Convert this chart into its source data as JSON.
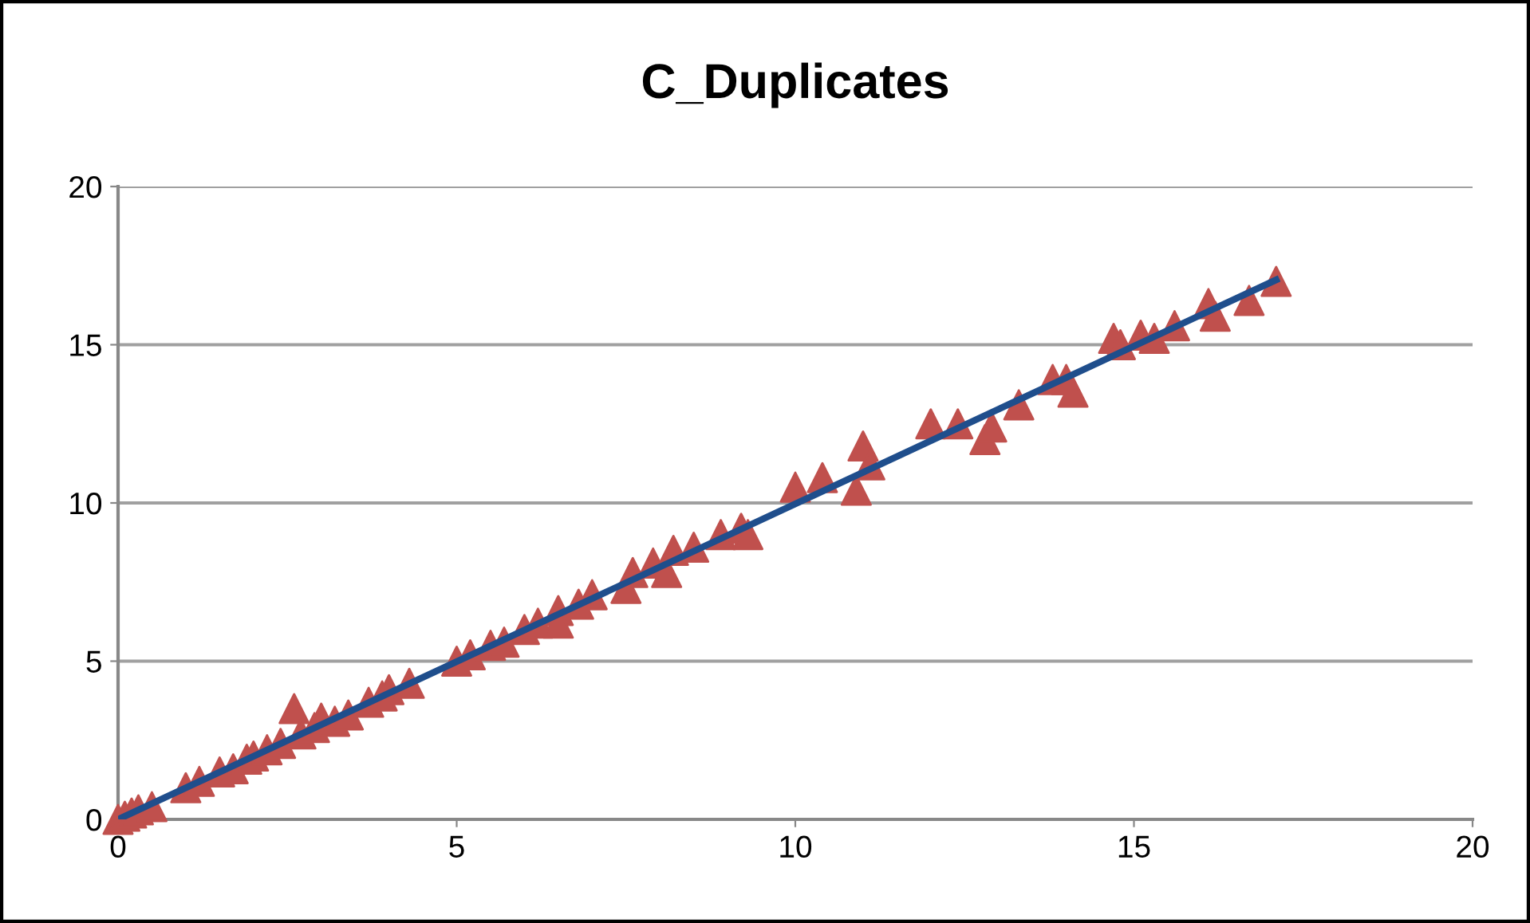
{
  "chart_data": {
    "type": "scatter",
    "title": "C_Duplicates",
    "xlim": [
      0,
      20
    ],
    "ylim": [
      0,
      20
    ],
    "xticks": [
      0,
      5,
      10,
      15,
      20
    ],
    "yticks": [
      0,
      5,
      10,
      15,
      20
    ],
    "grid": "y",
    "marker": "triangle",
    "series": [
      {
        "color": "#c0504d",
        "x": [
          0,
          0.1,
          0.2,
          0.3,
          0.5,
          1.0,
          1.2,
          1.5,
          1.7,
          1.9,
          2.0,
          2.2,
          2.4,
          2.6,
          2.7,
          2.9,
          3.0,
          3.2,
          3.4,
          3.7,
          3.9,
          4.0,
          4.3,
          5.0,
          5.2,
          5.5,
          5.7,
          6.0,
          6.2,
          6.5,
          6.5,
          6.8,
          7.0,
          7.5,
          7.6,
          7.9,
          8.1,
          8.2,
          8.5,
          8.9,
          9.2,
          9.3,
          10.0,
          10.4,
          10.9,
          11.0,
          11.1,
          12.0,
          12.4,
          12.8,
          12.9,
          13.3,
          13.8,
          14.1,
          14.0,
          14.7,
          14.8,
          15.1,
          15.3,
          15.6,
          16.1,
          16.2,
          16.7,
          17.1
        ],
        "values": [
          0,
          0.1,
          0.2,
          0.3,
          0.4,
          1.0,
          1.2,
          1.5,
          1.6,
          1.9,
          2.0,
          2.2,
          2.4,
          3.5,
          2.7,
          2.9,
          3.2,
          3.1,
          3.3,
          3.7,
          3.9,
          4.1,
          4.3,
          5.0,
          5.2,
          5.5,
          5.6,
          6.0,
          6.2,
          6.6,
          6.2,
          6.8,
          7.1,
          7.3,
          7.8,
          8.1,
          7.8,
          8.5,
          8.6,
          9.0,
          9.2,
          9.0,
          10.5,
          10.8,
          10.4,
          11.8,
          11.2,
          12.5,
          12.5,
          12.0,
          12.4,
          13.1,
          13.9,
          13.5,
          13.9,
          15.2,
          15.0,
          15.3,
          15.2,
          15.6,
          16.3,
          15.9,
          16.4,
          17.0
        ]
      },
      {
        "type": "line",
        "color": "#1f4e8c",
        "marker": "none",
        "line_style": "solid",
        "x": [
          0.05,
          17.1
        ],
        "values": [
          0.05,
          17.05
        ]
      }
    ]
  }
}
